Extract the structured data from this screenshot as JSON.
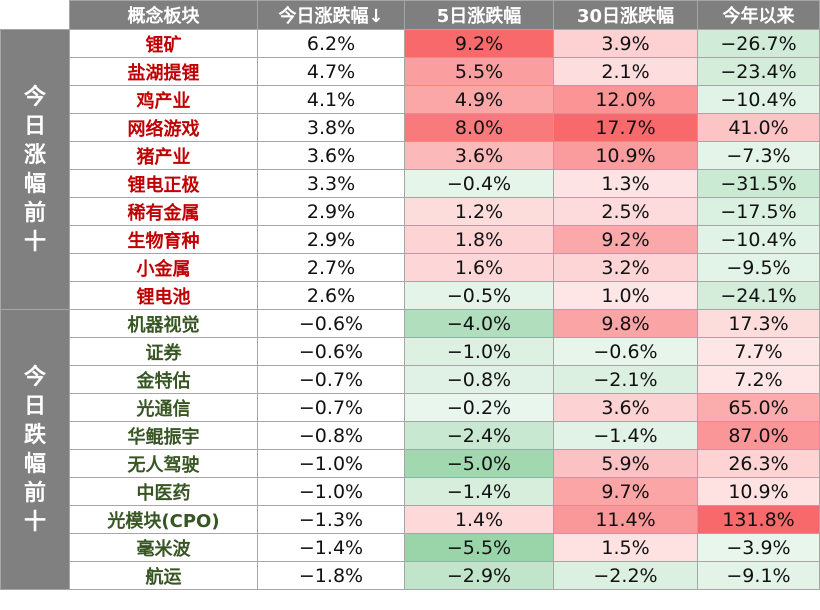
{
  "chart_data": {
    "type": "table",
    "headers": [
      "概念板块",
      "今日涨跌幅↓",
      "5日涨跌幅",
      "30日涨跌幅",
      "今年以来"
    ],
    "groups": [
      {
        "label": "今日涨幅前十",
        "chars": [
          "今",
          "日",
          "涨",
          "幅",
          "前",
          "十"
        ],
        "rows": [
          {
            "name": "锂矿",
            "today": "6.2%",
            "d5": "9.2%",
            "d30": "3.9%",
            "ytd": "−26.7%"
          },
          {
            "name": "盐湖提锂",
            "today": "4.7%",
            "d5": "5.5%",
            "d30": "2.1%",
            "ytd": "−23.4%"
          },
          {
            "name": "鸡产业",
            "today": "4.1%",
            "d5": "4.9%",
            "d30": "12.0%",
            "ytd": "−10.4%"
          },
          {
            "name": "网络游戏",
            "today": "3.8%",
            "d5": "8.0%",
            "d30": "17.7%",
            "ytd": "41.0%"
          },
          {
            "name": "猪产业",
            "today": "3.6%",
            "d5": "3.6%",
            "d30": "10.9%",
            "ytd": "−7.3%"
          },
          {
            "name": "锂电正极",
            "today": "3.3%",
            "d5": "−0.4%",
            "d30": "1.3%",
            "ytd": "−31.5%"
          },
          {
            "name": "稀有金属",
            "today": "2.9%",
            "d5": "1.2%",
            "d30": "2.5%",
            "ytd": "−17.5%"
          },
          {
            "name": "生物育种",
            "today": "2.9%",
            "d5": "1.8%",
            "d30": "9.2%",
            "ytd": "−10.4%"
          },
          {
            "name": "小金属",
            "today": "2.7%",
            "d5": "1.6%",
            "d30": "3.2%",
            "ytd": "−9.5%"
          },
          {
            "name": "锂电池",
            "today": "2.6%",
            "d5": "−0.5%",
            "d30": "1.0%",
            "ytd": "−24.1%"
          }
        ]
      },
      {
        "label": "今日跌幅前十",
        "chars": [
          "今",
          "日",
          "跌",
          "幅",
          "前",
          "十"
        ],
        "rows": [
          {
            "name": "机器视觉",
            "today": "−0.6%",
            "d5": "−4.0%",
            "d30": "9.8%",
            "ytd": "17.3%"
          },
          {
            "name": "证券",
            "today": "−0.6%",
            "d5": "−1.0%",
            "d30": "−0.6%",
            "ytd": "7.7%"
          },
          {
            "name": "金特估",
            "today": "−0.7%",
            "d5": "−0.8%",
            "d30": "−2.1%",
            "ytd": "7.2%"
          },
          {
            "name": "光通信",
            "today": "−0.7%",
            "d5": "−0.2%",
            "d30": "3.6%",
            "ytd": "65.0%"
          },
          {
            "name": "华鲲振宇",
            "today": "−0.8%",
            "d5": "−2.4%",
            "d30": "−1.4%",
            "ytd": "87.0%"
          },
          {
            "name": "无人驾驶",
            "today": "−1.0%",
            "d5": "−5.0%",
            "d30": "5.9%",
            "ytd": "26.3%"
          },
          {
            "name": "中医药",
            "today": "−1.0%",
            "d5": "−1.4%",
            "d30": "9.7%",
            "ytd": "10.9%"
          },
          {
            "name": "光模块(CPO)",
            "today": "−1.3%",
            "d5": "1.4%",
            "d30": "11.4%",
            "ytd": "131.8%"
          },
          {
            "name": "毫米波",
            "today": "−1.4%",
            "d5": "−5.5%",
            "d30": "1.5%",
            "ytd": "−3.9%"
          },
          {
            "name": "航运",
            "today": "−1.8%",
            "d5": "−2.9%",
            "d30": "−2.2%",
            "ytd": "−9.1%"
          }
        ]
      }
    ]
  },
  "colors": {
    "header_bg": "#7f7f7f",
    "group_bg": "#808080",
    "up_name": "#c00000",
    "down_name": "#375623",
    "positive_heat": "#f8696b",
    "negative_heat": "#63be7b"
  }
}
